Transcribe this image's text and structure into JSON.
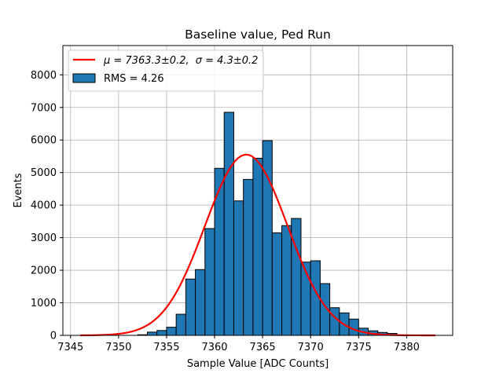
{
  "chart_data": {
    "type": "bar",
    "title": "Baseline value, Ped Run",
    "xlabel": "Sample Value [ADC Counts]",
    "ylabel": "Events",
    "xlim": [
      7344.2,
      7384.8
    ],
    "ylim": [
      0,
      8900
    ],
    "xticks": [
      7345,
      7350,
      7355,
      7360,
      7365,
      7370,
      7375,
      7380
    ],
    "yticks": [
      0,
      1000,
      2000,
      3000,
      4000,
      5000,
      6000,
      7000,
      8000
    ],
    "grid": true,
    "legend_position": "top-left",
    "bin_width": 1.0,
    "histogram": {
      "name": "RMS = 4.26",
      "color": "#1f77b4",
      "bin_starts": [
        7352,
        7353,
        7354,
        7355,
        7356,
        7357,
        7358,
        7359,
        7360,
        7361,
        7362,
        7363,
        7364,
        7365,
        7366,
        7367,
        7368,
        7369,
        7370,
        7371,
        7372,
        7373,
        7374,
        7375,
        7376,
        7377,
        7378
      ],
      "counts": [
        20,
        100,
        150,
        250,
        650,
        1730,
        2020,
        3280,
        5130,
        6850,
        4130,
        4790,
        5440,
        5980,
        3150,
        3370,
        3590,
        2250,
        2290,
        1590,
        850,
        690,
        500,
        220,
        140,
        90,
        60
      ]
    },
    "fit": {
      "label_mu": "μ = 7363.3±0.2,",
      "label_sigma": "σ = 4.3±0.2",
      "color": "#ff0000",
      "mu": 7363.3,
      "sigma": 4.3,
      "amplitude": 5550,
      "x_range": [
        7346,
        7383
      ]
    }
  }
}
